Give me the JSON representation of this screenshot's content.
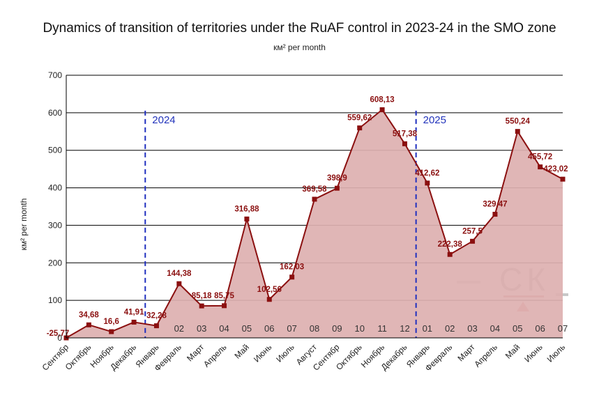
{
  "title": "Dynamics of transition of territories under the RuAF control in 2023-24 in the SMO zone",
  "subtitle": "км² per month",
  "chart_data": {
    "type": "area",
    "title": "Dynamics of transition of territories under the RuAF control in 2023-24 in the SMO zone",
    "subtitle": "км² per month",
    "ylabel": "км² per month",
    "xlabel": "",
    "ylim": [
      0,
      700
    ],
    "yticks": [
      0,
      100,
      200,
      300,
      400,
      500,
      600,
      700
    ],
    "grid": true,
    "colors": {
      "line": "#8b1010",
      "fill": "#ddb0b0",
      "labels": "#8b1010",
      "year_marker": "#1f2fbf"
    },
    "categories": [
      "Сентябр",
      "Октябрь",
      "Ноябрь",
      "Декабрь",
      "Январь",
      "Февраль",
      "Март",
      "Апрель",
      "Май",
      "Июнь",
      "Июль",
      "Август",
      "Сентябр",
      "Октябрь",
      "Ноябрь",
      "Декабрь",
      "Январь",
      "Февраль",
      "Март",
      "Апрель",
      "Май",
      "Июнь",
      "Июль"
    ],
    "month_numbers": [
      "",
      "",
      "",
      "",
      "",
      "02",
      "03",
      "04",
      "05",
      "06",
      "07",
      "08",
      "09",
      "10",
      "11",
      "12",
      "01",
      "02",
      "03",
      "04",
      "05",
      "06",
      "07"
    ],
    "series": [
      {
        "values": [
          -25.77,
          34.68,
          16.6,
          41.91,
          32.28,
          144.38,
          85.18,
          85.75,
          316.88,
          102.56,
          162.03,
          369.58,
          398.9,
          559.62,
          608.13,
          517.38,
          412.62,
          222.38,
          257.5,
          329.47,
          550.24,
          455.72,
          423.02
        ],
        "labels": [
          "-25,77",
          "34,68",
          "16,6",
          "41,91",
          "32,28",
          "144,38",
          "85,18",
          "85,75",
          "316,88",
          "102,56",
          "162,03",
          "369,58",
          "398,9",
          "559,62",
          "608,13",
          "517,38",
          "412,62",
          "222,38",
          "257,5",
          "329,47",
          "550,24",
          "455,72",
          "423,02"
        ]
      }
    ],
    "annotations": [
      {
        "text": "2024",
        "between": [
          "Декабрь",
          "Январь"
        ],
        "style": "dashed vertical line"
      },
      {
        "text": "2025",
        "between": [
          "Декабрь",
          "Январь"
        ],
        "occurrence": 2,
        "style": "dashed vertical line"
      }
    ]
  },
  "watermark": {
    "text": "СК",
    "icon": "triangle-icon"
  }
}
